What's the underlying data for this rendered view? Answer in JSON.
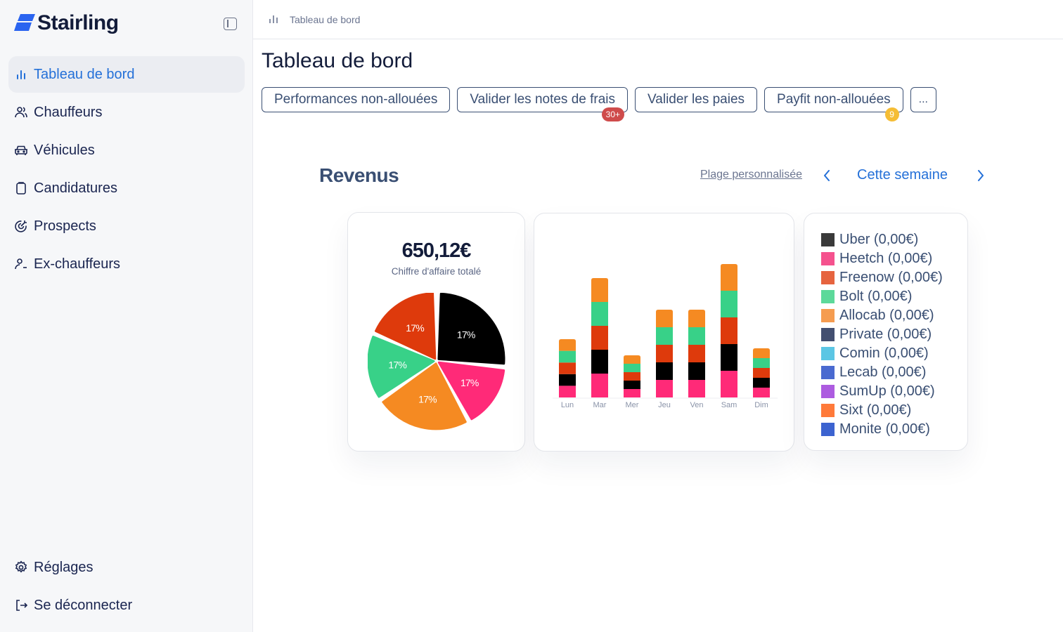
{
  "brand": {
    "name": "Stairling",
    "color": "#2a64f0"
  },
  "sidebar": {
    "items": [
      {
        "label": "Tableau de bord",
        "icon": "bar-chart-icon",
        "active": true
      },
      {
        "label": "Chauffeurs",
        "icon": "users-icon"
      },
      {
        "label": "Véhicules",
        "icon": "car-icon"
      },
      {
        "label": "Candidatures",
        "icon": "clipboard-icon"
      },
      {
        "label": "Prospects",
        "icon": "target-icon"
      },
      {
        "label": "Ex-chauffeurs",
        "icon": "user-minus-icon"
      }
    ],
    "bottom": [
      {
        "label": "Réglages",
        "icon": "gear-icon"
      },
      {
        "label": "Se déconnecter",
        "icon": "logout-icon"
      }
    ]
  },
  "breadcrumb": {
    "label": "Tableau de bord"
  },
  "page": {
    "title": "Tableau de bord"
  },
  "actions": [
    {
      "label": "Performances non-allouées"
    },
    {
      "label": "Valider les notes de frais",
      "badge": "30+",
      "badge_color": "#cf4b4b"
    },
    {
      "label": "Valider les paies"
    },
    {
      "label": "Payfit non-allouées",
      "badge": "9",
      "badge_color": "#f5bd35"
    },
    {
      "label": "..."
    }
  ],
  "revenue": {
    "title": "Revenus",
    "range_link": "Plage personnalisée",
    "period": "Cette semaine",
    "total": "650,12€",
    "total_label": "Chiffre d'affaire totalé"
  },
  "legend": [
    {
      "label": "Uber (0,00€)",
      "color": "#3a3a3a"
    },
    {
      "label": "Heetch (0,00€)",
      "color": "#f5528e"
    },
    {
      "label": "Freenow (0,00€)",
      "color": "#e6643f"
    },
    {
      "label": "Bolt (0,00€)",
      "color": "#5cd99a"
    },
    {
      "label": "Allocab (0,00€)",
      "color": "#f59c50"
    },
    {
      "label": "Private (0,00€)",
      "color": "#434f70"
    },
    {
      "label": "Comin (0,00€)",
      "color": "#5cc6e4"
    },
    {
      "label": "Lecab (0,00€)",
      "color": "#4a6ad0"
    },
    {
      "label": "SumUp (0,00€)",
      "color": "#ad5ce0"
    },
    {
      "label": "Sixt (0,00€)",
      "color": "#ff7a3a"
    },
    {
      "label": "Monite (0,00€)",
      "color": "#3c63d0"
    }
  ],
  "chart_data": [
    {
      "type": "pie",
      "title": "650,12€",
      "subtitle": "Chiffre d'affaire totalé",
      "slices": [
        {
          "label": "17%",
          "color": "#000000",
          "start_deg": 2,
          "end_deg": 94
        },
        {
          "label": "17%",
          "color": "#ff2a78",
          "start_deg": 97,
          "end_deg": 150
        },
        {
          "label": "17%",
          "color": "#f58a22",
          "start_deg": 153,
          "end_deg": 234
        },
        {
          "label": "17%",
          "color": "#38d188",
          "start_deg": 237,
          "end_deg": 292
        },
        {
          "label": "17%",
          "color": "#de3a0c",
          "start_deg": 295,
          "end_deg": 358
        }
      ]
    },
    {
      "type": "bar",
      "stacked": true,
      "categories": [
        "Lun",
        "Mar",
        "Mer",
        "Jeu",
        "Ven",
        "Sam",
        "Dim"
      ],
      "series": [
        {
          "name": "Heetch",
          "color": "#ff2a78",
          "values": [
            16.6,
            34,
            12,
            25,
            25,
            38,
            14
          ]
        },
        {
          "name": "Uber",
          "color": "#000000",
          "values": [
            16.6,
            34,
            12,
            25,
            25,
            38,
            14
          ]
        },
        {
          "name": "Freenow",
          "color": "#de3a0c",
          "values": [
            16.6,
            34,
            12,
            25,
            25,
            38,
            14
          ]
        },
        {
          "name": "Bolt",
          "color": "#38d188",
          "values": [
            16.6,
            34,
            12,
            25,
            25,
            38,
            14
          ]
        },
        {
          "name": "Allocab",
          "color": "#f58a22",
          "values": [
            16.6,
            34,
            12,
            25,
            25,
            38,
            14
          ]
        }
      ],
      "grid": false,
      "legend": "separate-card"
    }
  ]
}
